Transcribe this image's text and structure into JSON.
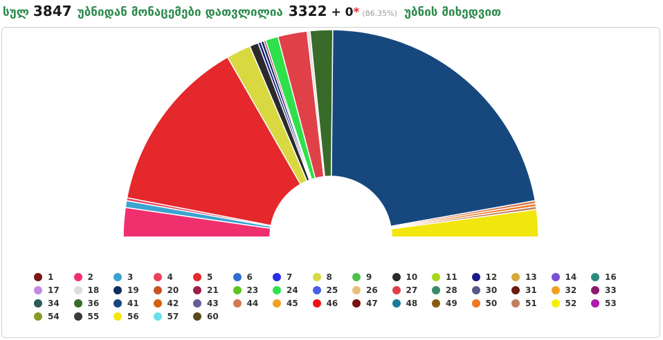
{
  "header": {
    "prefix": "სულ",
    "total": "3847",
    "middle": "უბნიდან მონაცემები დათვლილია",
    "counted": "3322",
    "plus": "+ 0",
    "star": "*",
    "percent": "(86.35%)",
    "suffix": "უბნის მიხედვით"
  },
  "chart_data": {
    "type": "pie",
    "style": "semicircle-donut",
    "title": "",
    "series": [
      {
        "name": "2",
        "value": 3.0,
        "color": "#f0306e"
      },
      {
        "name": "3",
        "value": 0.7,
        "color": "#3ba3d0"
      },
      {
        "name": "4",
        "value": 0.3,
        "color": "#e8415a"
      },
      {
        "name": "5",
        "value": 18.0,
        "color": "#e5282b"
      },
      {
        "name": "8",
        "value": 2.5,
        "color": "#d9d840"
      },
      {
        "name": "10",
        "value": 0.9,
        "color": "#2a2a2a"
      },
      {
        "name": "12",
        "value": 0.3,
        "color": "#1a1a8c"
      },
      {
        "name": "19",
        "value": 0.3,
        "color": "#0f2d5a"
      },
      {
        "name": "21",
        "value": 0.2,
        "color": "#a01e4b"
      },
      {
        "name": "24",
        "value": 1.3,
        "color": "#2ee04a"
      },
      {
        "name": "27",
        "value": 3.0,
        "color": "#e04148"
      },
      {
        "name": "18",
        "value": 0.3,
        "color": "#e0dcdc"
      },
      {
        "name": "36",
        "value": 2.3,
        "color": "#386b2a"
      },
      {
        "name": "41",
        "value": 29.0,
        "color": "#16487e"
      },
      {
        "name": "44",
        "value": 0.3,
        "color": "#d47a50"
      },
      {
        "name": "50",
        "value": 0.3,
        "color": "#f07820"
      },
      {
        "name": "51",
        "value": 0.3,
        "color": "#c08060"
      },
      {
        "name": "56",
        "value": 2.8,
        "color": "#f2e60f"
      }
    ]
  },
  "legend": [
    {
      "label": "1",
      "color": "#7a1616"
    },
    {
      "label": "2",
      "color": "#f0306e"
    },
    {
      "label": "3",
      "color": "#3ba3d0"
    },
    {
      "label": "4",
      "color": "#e8415a"
    },
    {
      "label": "5",
      "color": "#e5282b"
    },
    {
      "label": "6",
      "color": "#2f6fcf"
    },
    {
      "label": "7",
      "color": "#2b2bef"
    },
    {
      "label": "8",
      "color": "#d9d840"
    },
    {
      "label": "9",
      "color": "#4cc24c"
    },
    {
      "label": "10",
      "color": "#2a2a2a"
    },
    {
      "label": "11",
      "color": "#a6d81a"
    },
    {
      "label": "12",
      "color": "#1a1a8c"
    },
    {
      "label": "13",
      "color": "#d4aa3c"
    },
    {
      "label": "14",
      "color": "#7a4fd0"
    },
    {
      "label": "16",
      "color": "#2c8a7a"
    },
    {
      "label": "17",
      "color": "#c08ae0"
    },
    {
      "label": "18",
      "color": "#e0dcdc"
    },
    {
      "label": "19",
      "color": "#0f2d5a"
    },
    {
      "label": "20",
      "color": "#c85424"
    },
    {
      "label": "21",
      "color": "#a01e4b"
    },
    {
      "label": "23",
      "color": "#5cc424"
    },
    {
      "label": "24",
      "color": "#2ee04a"
    },
    {
      "label": "25",
      "color": "#4a5ee8"
    },
    {
      "label": "26",
      "color": "#e8c07a"
    },
    {
      "label": "27",
      "color": "#e04148"
    },
    {
      "label": "28",
      "color": "#3a8a6a"
    },
    {
      "label": "30",
      "color": "#5a5a8a"
    },
    {
      "label": "31",
      "color": "#6a1a10"
    },
    {
      "label": "32",
      "color": "#f0a020"
    },
    {
      "label": "33",
      "color": "#8a1a6a"
    },
    {
      "label": "34",
      "color": "#2a5a5a"
    },
    {
      "label": "36",
      "color": "#386b2a"
    },
    {
      "label": "41",
      "color": "#16487e"
    },
    {
      "label": "42",
      "color": "#d4600e"
    },
    {
      "label": "43",
      "color": "#6a5a9a"
    },
    {
      "label": "44",
      "color": "#d47a50"
    },
    {
      "label": "45",
      "color": "#f5a020"
    },
    {
      "label": "46",
      "color": "#f01414"
    },
    {
      "label": "47",
      "color": "#7a1010"
    },
    {
      "label": "48",
      "color": "#1a7a9a"
    },
    {
      "label": "49",
      "color": "#8a5a10"
    },
    {
      "label": "50",
      "color": "#f07820"
    },
    {
      "label": "51",
      "color": "#c08060"
    },
    {
      "label": "52",
      "color": "#f5f000"
    },
    {
      "label": "53",
      "color": "#b01ab0"
    },
    {
      "label": "54",
      "color": "#8a9a2a"
    },
    {
      "label": "55",
      "color": "#3a3a3a"
    },
    {
      "label": "56",
      "color": "#f2e60f"
    },
    {
      "label": "57",
      "color": "#6ae0ea"
    },
    {
      "label": "60",
      "color": "#5a4a1a"
    }
  ]
}
